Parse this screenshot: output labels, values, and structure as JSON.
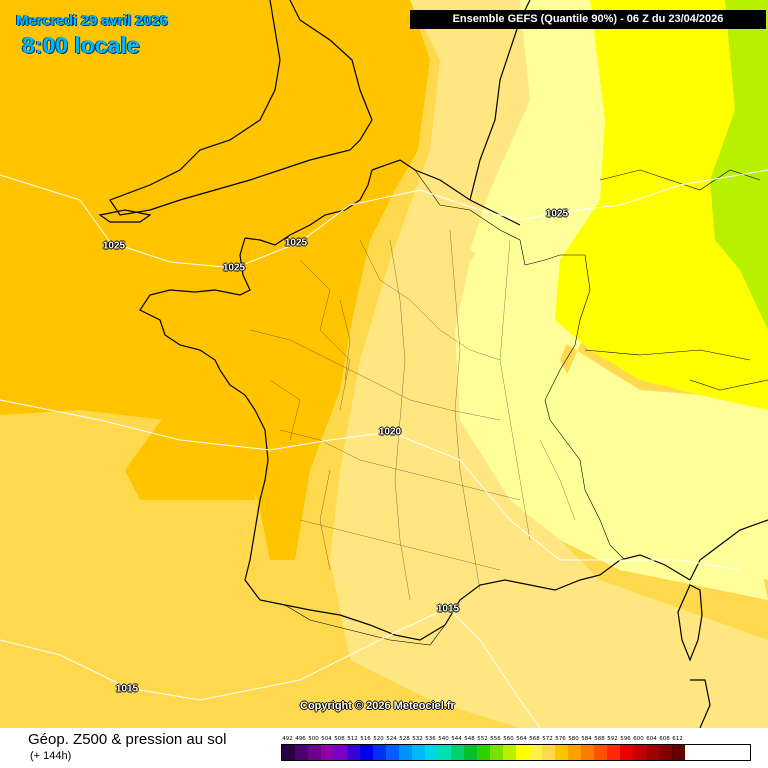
{
  "header": {
    "date": "Mercredi 29 avril 2026",
    "time": "8:00 locale",
    "model_run": "Ensemble GEFS  (Quantile 90%) - 06 Z du 23/04/2026"
  },
  "isobars": [
    {
      "label": "1025"
    },
    {
      "label": "1025"
    },
    {
      "label": "1025"
    },
    {
      "label": "1025"
    },
    {
      "label": "1020"
    },
    {
      "label": "1015"
    },
    {
      "label": "1015"
    }
  ],
  "copyright": "Copyright © 2026 Meteociel.fr",
  "footer": {
    "title": "Géop. Z500 & pression au sol",
    "subtitle": "(+ 144h)"
  },
  "scale": {
    "values": [
      "492",
      "496",
      "500",
      "504",
      "508",
      "512",
      "516",
      "520",
      "524",
      "528",
      "532",
      "536",
      "540",
      "544",
      "548",
      "552",
      "556",
      "560",
      "564",
      "568",
      "572",
      "576",
      "580",
      "584",
      "588",
      "592",
      "596",
      "600",
      "604",
      "608",
      "612"
    ],
    "colors": [
      "#2a0040",
      "#4b0070",
      "#6e008e",
      "#9000a8",
      "#7a00c8",
      "#3a00d6",
      "#0000e8",
      "#0030f0",
      "#0060ff",
      "#0090ff",
      "#00b8ff",
      "#00d8e8",
      "#00e0b0",
      "#00d070",
      "#00c030",
      "#30d000",
      "#7ae000",
      "#b8f000",
      "#ffff00",
      "#fff04a",
      "#ffd94d",
      "#ffc400",
      "#ffa000",
      "#ff7a00",
      "#ff5000",
      "#ff2a00",
      "#e60000",
      "#c00000",
      "#a00000",
      "#800000",
      "#600000"
    ]
  },
  "colors": {
    "ocean_west": "#ffc400",
    "southwest": "#ffd94d",
    "central_band": "#ffe680",
    "east_pale": "#ffff99",
    "east_yellow": "#ffff00",
    "northeast_green": "#b8f000"
  }
}
